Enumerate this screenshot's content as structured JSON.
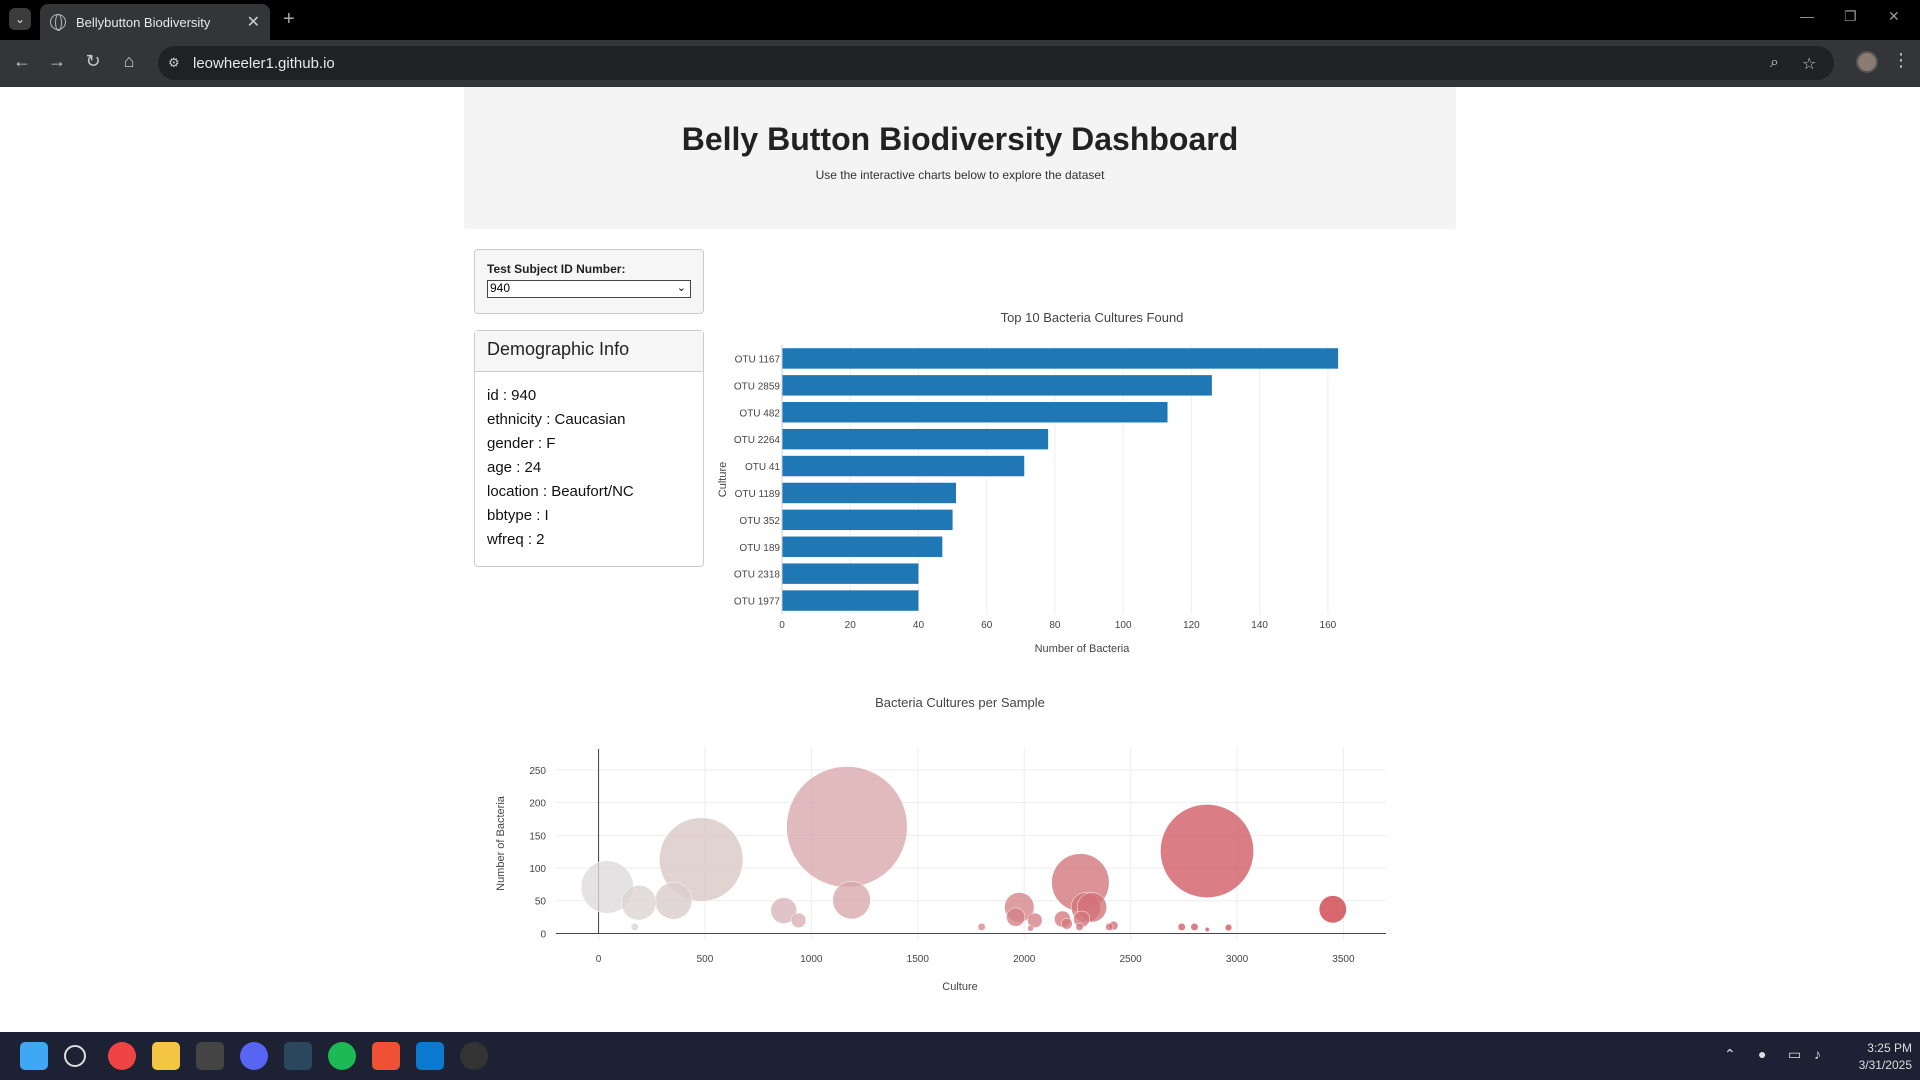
{
  "browser": {
    "tab_title": "Bellybutton Biodiversity",
    "url": "leowheeler1.github.io"
  },
  "header": {
    "title": "Belly Button Biodiversity Dashboard",
    "subtitle": "Use the interactive charts below to explore the dataset"
  },
  "selector": {
    "label": "Test Subject ID Number:",
    "value": "940"
  },
  "demographics": {
    "title": "Demographic Info",
    "lines": [
      "id : 940",
      "ethnicity : Caucasian",
      "gender : F",
      "age : 24",
      "location : Beaufort/NC",
      "bbtype : I",
      "wfreq : 2"
    ]
  },
  "chart_data": [
    {
      "type": "bar",
      "orientation": "horizontal",
      "title": "Top 10 Bacteria Cultures Found",
      "xlabel": "Number of Bacteria",
      "ylabel": "Culture",
      "categories": [
        "OTU 1167",
        "OTU 2859",
        "OTU 482",
        "OTU 2264",
        "OTU 41",
        "OTU 1189",
        "OTU 352",
        "OTU 189",
        "OTU 2318",
        "OTU 1977"
      ],
      "values": [
        163,
        126,
        113,
        78,
        71,
        51,
        50,
        47,
        40,
        40
      ],
      "xlim": [
        0,
        170
      ],
      "xticks": [
        0,
        20,
        40,
        60,
        80,
        100,
        120,
        140,
        160
      ],
      "color": "#1f77b4",
      "grid": true
    },
    {
      "type": "scatter",
      "subtype": "bubble",
      "title": "Bacteria Cultures per Sample",
      "xlabel": "Culture",
      "ylabel": "Number of Bacteria",
      "xlim": [
        -200,
        3700
      ],
      "ylim": [
        -10,
        285
      ],
      "xticks": [
        0,
        500,
        1000,
        1500,
        2000,
        2500,
        3000,
        3500
      ],
      "yticks": [
        0,
        50,
        100,
        150,
        200,
        250
      ],
      "grid": true,
      "points": [
        {
          "x": 41,
          "y": 71
        },
        {
          "x": 189,
          "y": 47
        },
        {
          "x": 352,
          "y": 50
        },
        {
          "x": 482,
          "y": 113
        },
        {
          "x": 870,
          "y": 35
        },
        {
          "x": 940,
          "y": 20
        },
        {
          "x": 1167,
          "y": 163
        },
        {
          "x": 1189,
          "y": 51
        },
        {
          "x": 1977,
          "y": 40
        },
        {
          "x": 1960,
          "y": 25
        },
        {
          "x": 2050,
          "y": 20
        },
        {
          "x": 2180,
          "y": 22
        },
        {
          "x": 2200,
          "y": 15
        },
        {
          "x": 2264,
          "y": 78
        },
        {
          "x": 2290,
          "y": 40
        },
        {
          "x": 2270,
          "y": 22
        },
        {
          "x": 2318,
          "y": 40
        },
        {
          "x": 2859,
          "y": 126
        },
        {
          "x": 3450,
          "y": 37
        },
        {
          "x": 170,
          "y": 10
        },
        {
          "x": 1800,
          "y": 10
        },
        {
          "x": 2400,
          "y": 10
        },
        {
          "x": 2420,
          "y": 12
        },
        {
          "x": 2260,
          "y": 10
        },
        {
          "x": 2030,
          "y": 8
        },
        {
          "x": 2740,
          "y": 10
        },
        {
          "x": 2800,
          "y": 10
        },
        {
          "x": 2960,
          "y": 9
        },
        {
          "x": 2860,
          "y": 6
        }
      ]
    }
  ],
  "taskbar": {
    "time": "3:25 PM",
    "date": "3/31/2025"
  }
}
